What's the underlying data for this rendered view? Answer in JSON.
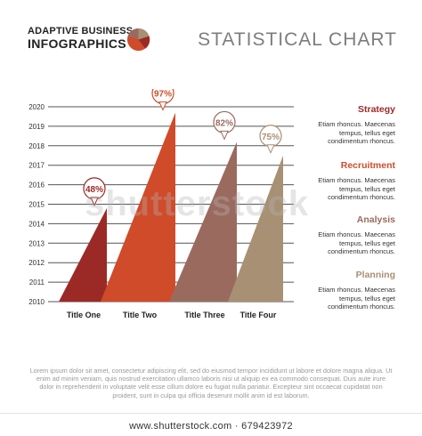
{
  "header": {
    "brand_line1": "ADAPTIVE BUSINESS",
    "brand_line2": "INFOGRAPHICS",
    "title": "STATISTICAL CHART"
  },
  "chart_data": {
    "type": "bar",
    "y_tick_labels": [
      "2010",
      "2011",
      "2012",
      "2013",
      "2014",
      "2015",
      "2016",
      "2017",
      "2018",
      "2019",
      "2020"
    ],
    "ylim": [
      0,
      100
    ],
    "categories": [
      "Title One",
      "Title Two",
      "Title Three",
      "Title Four"
    ],
    "values": [
      48,
      97,
      82,
      75
    ],
    "value_labels": [
      "48%",
      "97%",
      "82%",
      "75%"
    ],
    "colors": [
      "#9b2a26",
      "#cf4b2a",
      "#9b6a5e",
      "#a89074"
    ],
    "grid": true
  },
  "legend": [
    {
      "title": "Strategy",
      "color": "#9b2a26",
      "desc": "Etiam rhoncus. Maecenas\ntempus, tellus eget\ncondimentum rhoncus."
    },
    {
      "title": "Recruitment",
      "color": "#cf4b2a",
      "desc": "Etiam rhoncus. Maecenas\ntempus, tellus eget\ncondimentum rhoncus."
    },
    {
      "title": "Analysis",
      "color": "#9b6a5e",
      "desc": "Etiam rhoncus. Maecenas\ntempus, tellus eget\ncondimentum rhoncus."
    },
    {
      "title": "Planning",
      "color": "#a89074",
      "desc": "Etiam rhoncus. Maecenas\ntempus, tellus eget\ncondimentum rhoncus."
    }
  ],
  "footer": {
    "text": "Lorem ipsum dolor sit amet, consectetur adipiscing elit, sed do eiusmod tempor incididunt ut labore et dolore magna aliqua. Ut enim ad minim veniam, quis nostrud exercitation ullamco laboris nisi ut aliquip ex ea commodo consequat. Duis aute irure dolor in reprehenderit in voluptate velit esse cillum dolore eu fugiat nulla pariatur. Excepteur sint occaecat cupidatat non proident, sunt in culpa qui officia deserunt mollit anim id est laborum.",
    "stock_url": "www.shutterstock.com · 679423972",
    "watermark": "shutterstock"
  }
}
